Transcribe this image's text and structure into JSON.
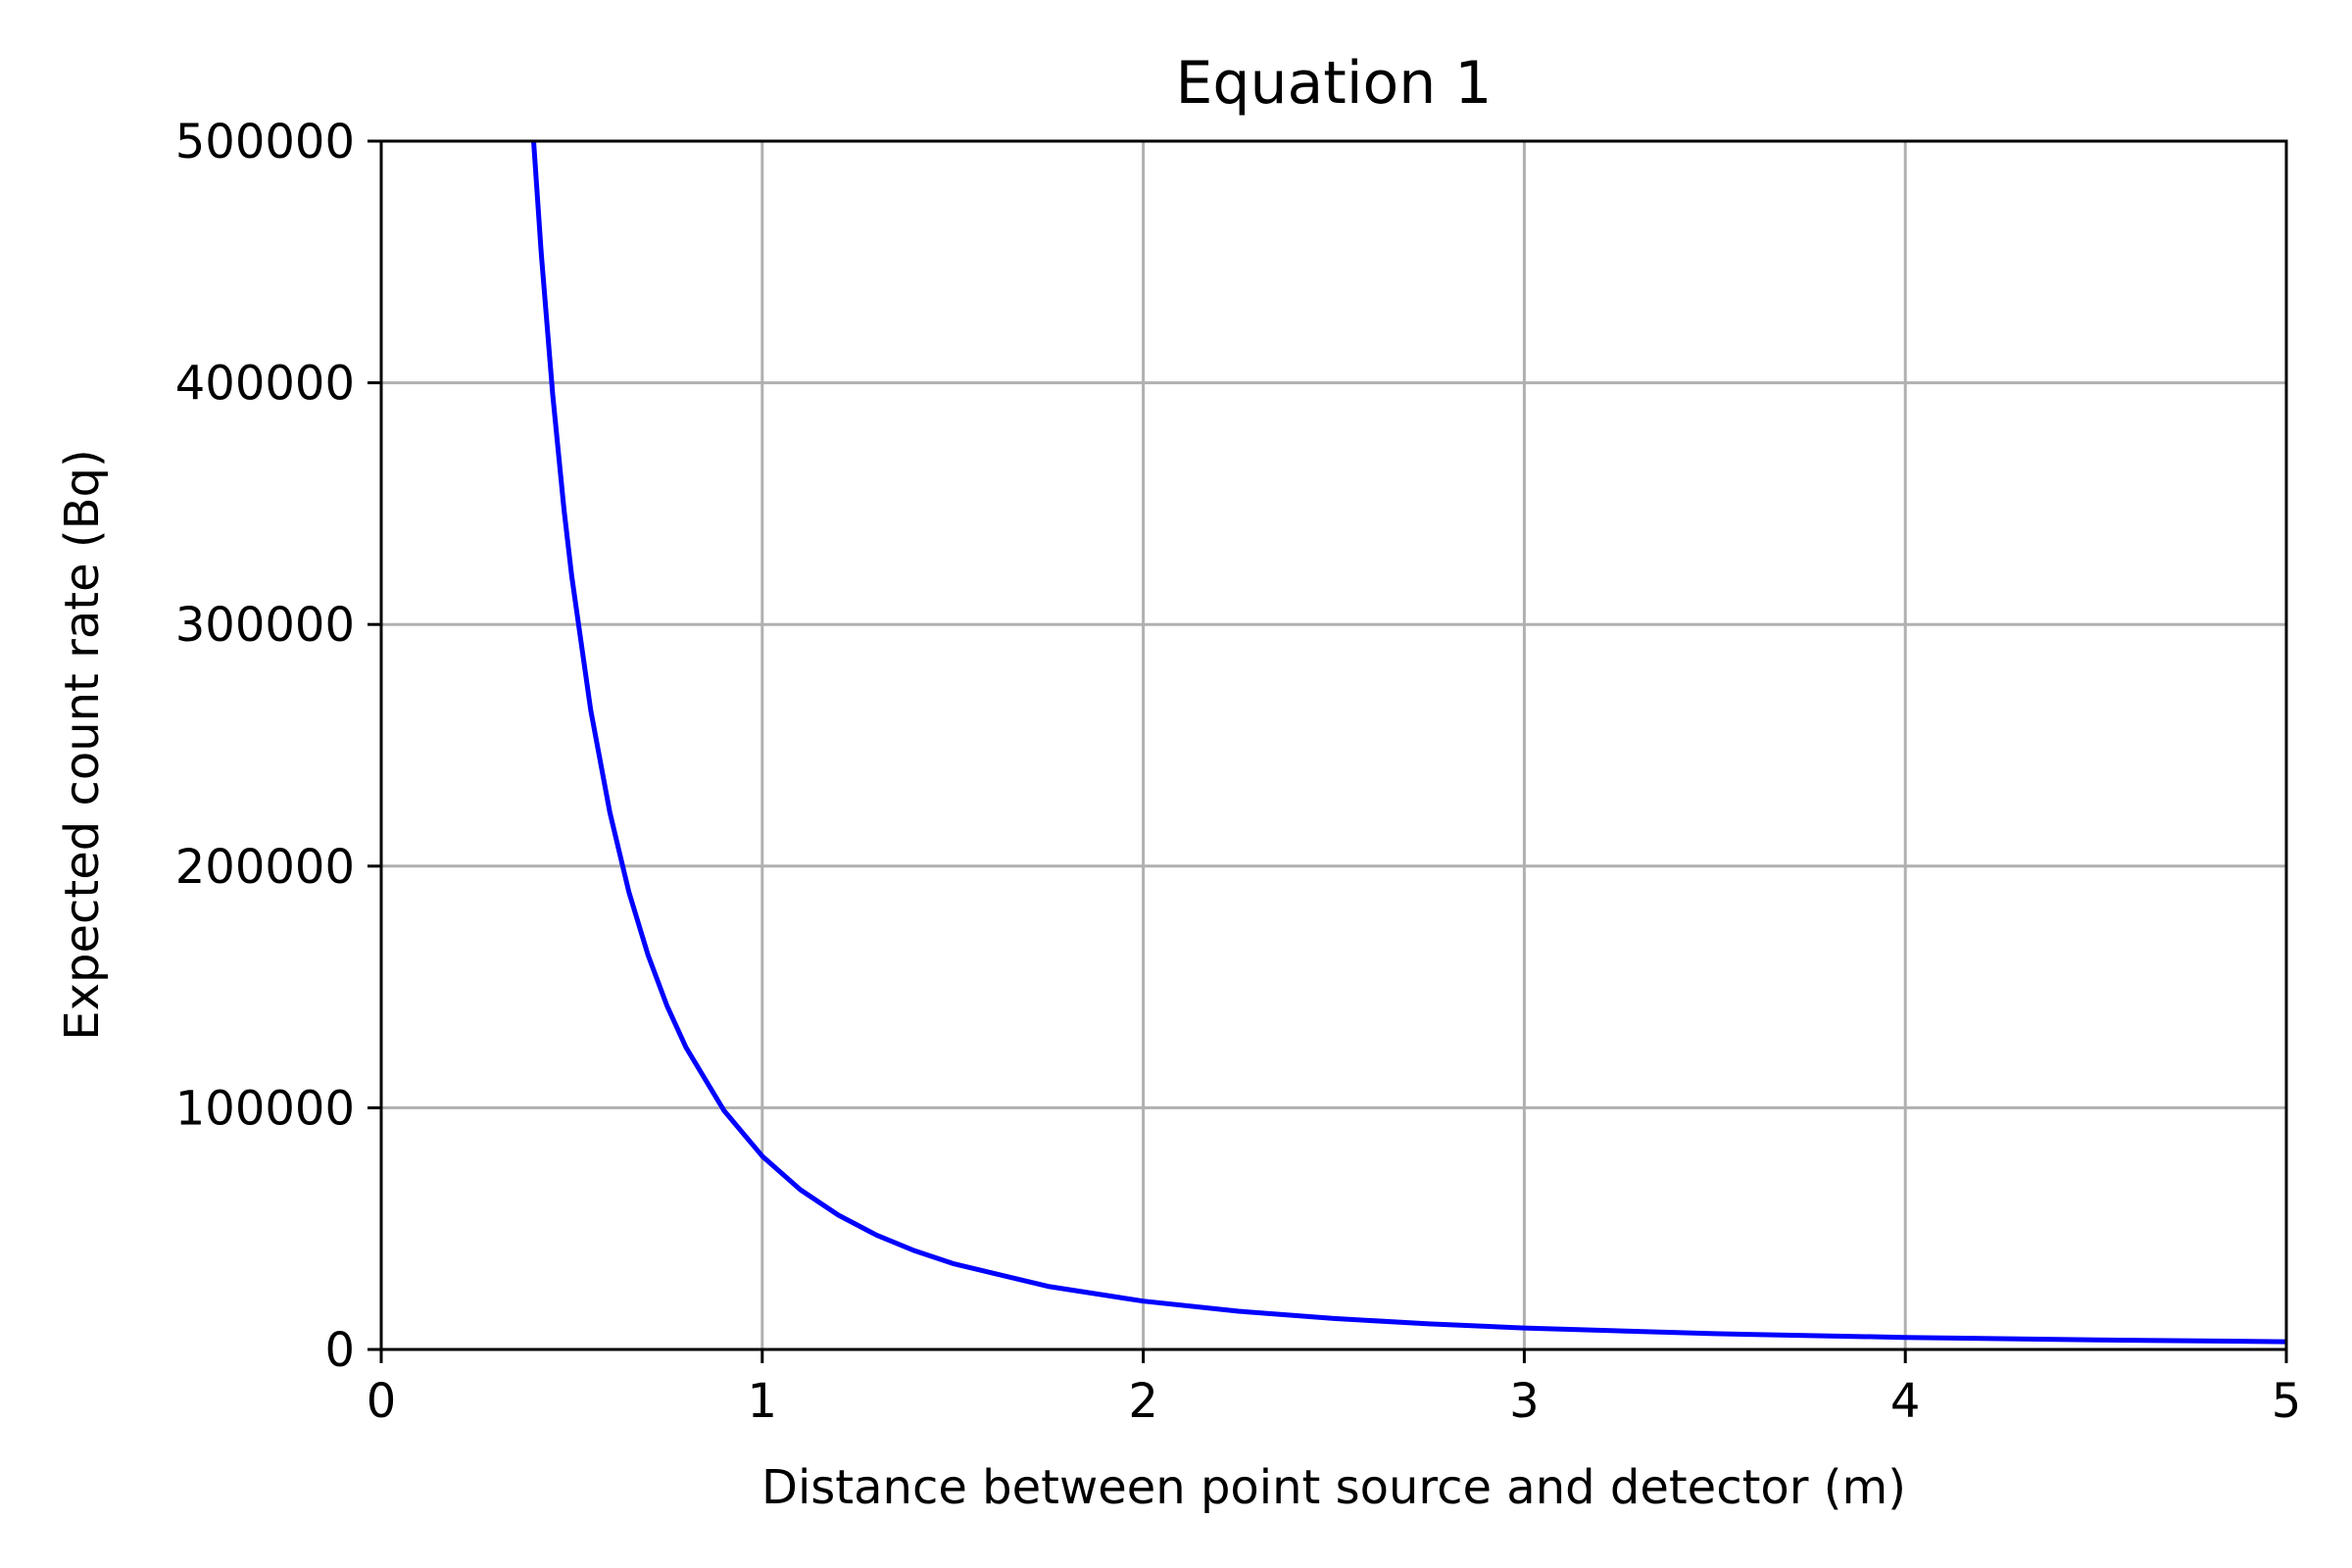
{
  "chart_data": {
    "type": "line",
    "title": "Equation 1",
    "xlabel": "Distance between point source and detector (m)",
    "ylabel": "Expected count rate (Bq)",
    "xlim": [
      0,
      5
    ],
    "ylim": [
      0,
      500000
    ],
    "xticks": [
      0,
      1,
      2,
      3,
      4,
      5
    ],
    "xtick_labels": [
      "0",
      "1",
      "2",
      "3",
      "4",
      "5"
    ],
    "yticks": [
      0,
      100000,
      200000,
      300000,
      400000,
      500000
    ],
    "ytick_labels": [
      "0",
      "100000",
      "200000",
      "300000",
      "400000",
      "500000"
    ],
    "grid": true,
    "series": [
      {
        "color": "#0000ff",
        "x": [
          0.4,
          0.42,
          0.45,
          0.48,
          0.5,
          0.55,
          0.6,
          0.65,
          0.7,
          0.75,
          0.8,
          0.9,
          1.0,
          1.1,
          1.2,
          1.3,
          1.4,
          1.5,
          1.75,
          2.0,
          2.25,
          2.5,
          2.75,
          3.0,
          3.5,
          4.0,
          4.5,
          5.0
        ],
        "y": [
          500000,
          453515,
          395062,
          347222,
          320000,
          264463,
          222222,
          189349,
          163265,
          142222,
          125000,
          98765,
          80000,
          66116,
          55556,
          47337,
          40816,
          35556,
          26122,
          20000,
          15802,
          12800,
          10579,
          8889,
          6531,
          5000,
          3951,
          3200
        ]
      }
    ]
  }
}
